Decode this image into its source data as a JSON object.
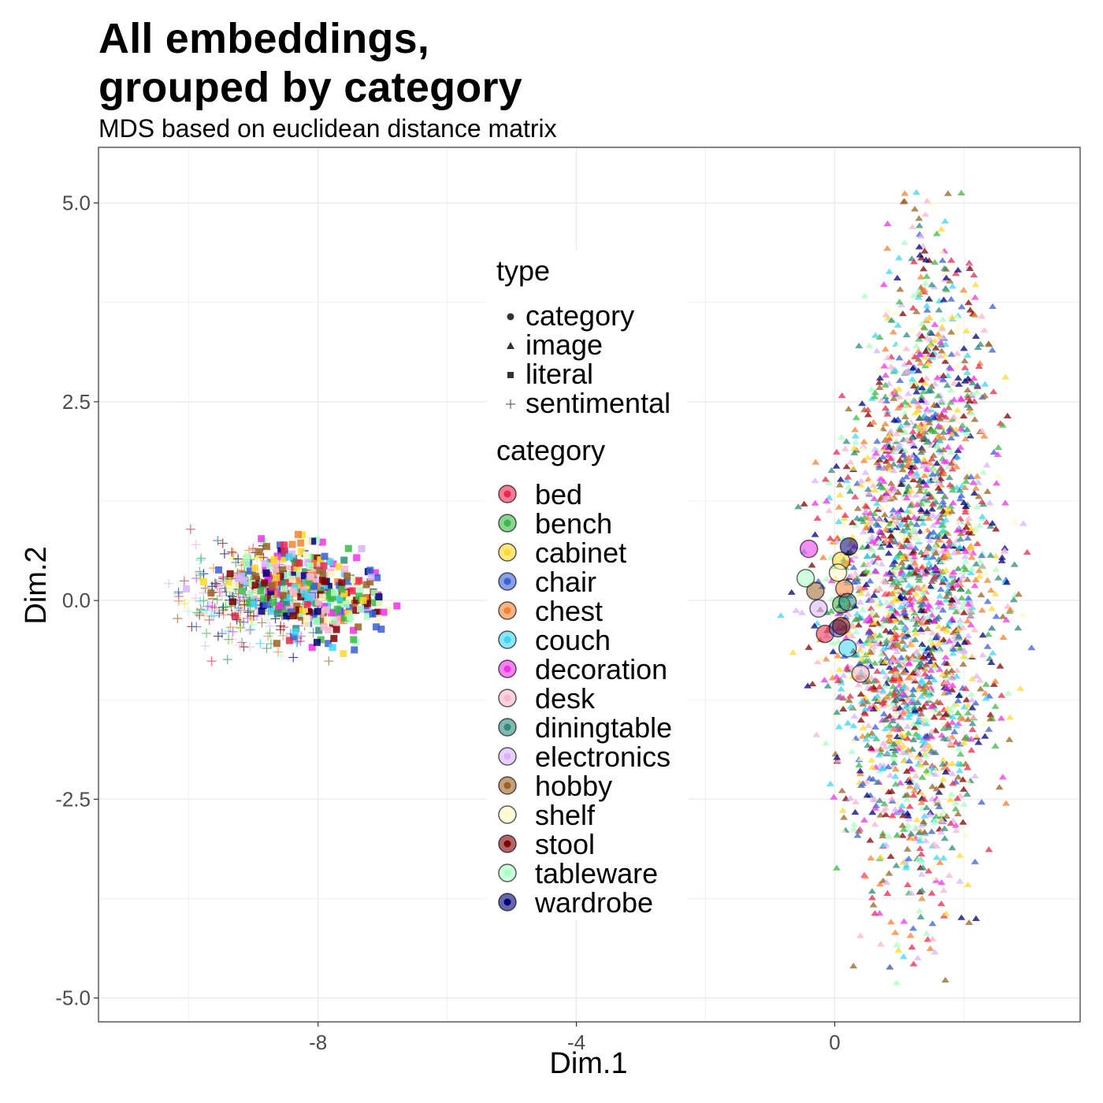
{
  "chart_data": {
    "type": "scatter",
    "title": "All embeddings,\ngrouped by category",
    "subtitle": "MDS based on euclidean distance matrix",
    "xlabel": "Dim.1",
    "ylabel": "Dim.2",
    "xlim": [
      -11.4,
      3.8
    ],
    "ylim": [
      -5.3,
      5.7
    ],
    "xticks": [
      -8,
      -4,
      0
    ],
    "xtick_labels": [
      "-8",
      "-4",
      "0"
    ],
    "yticks": [
      -5,
      -2.5,
      0,
      2.5,
      5
    ],
    "ytick_labels": [
      "-5.0",
      "-2.5",
      "0.0",
      "2.5",
      "5.0"
    ],
    "grid": true,
    "legend_position": "center",
    "legend": {
      "type_title": "type",
      "types": [
        {
          "label": "category",
          "shape": "circle"
        },
        {
          "label": "image",
          "shape": "triangle"
        },
        {
          "label": "literal",
          "shape": "square"
        },
        {
          "label": "sentimental",
          "shape": "plus"
        }
      ],
      "category_title": "category"
    },
    "categories": [
      {
        "name": "bed",
        "color": "#e8284f"
      },
      {
        "name": "bench",
        "color": "#3cb94a"
      },
      {
        "name": "cabinet",
        "color": "#ffd92f"
      },
      {
        "name": "chair",
        "color": "#3a5fd6"
      },
      {
        "name": "chest",
        "color": "#f58231"
      },
      {
        "name": "couch",
        "color": "#3dd6f5"
      },
      {
        "name": "decoration",
        "color": "#f032e6"
      },
      {
        "name": "desk",
        "color": "#fbb6cc"
      },
      {
        "name": "diningtable",
        "color": "#2e8b7a"
      },
      {
        "name": "electronics",
        "color": "#d9b3ff"
      },
      {
        "name": "hobby",
        "color": "#9a6324"
      },
      {
        "name": "shelf",
        "color": "#fffac8"
      },
      {
        "name": "stool",
        "color": "#800000"
      },
      {
        "name": "tableware",
        "color": "#aaffc3"
      },
      {
        "name": "wardrobe",
        "color": "#000075"
      }
    ],
    "category_points": [
      {
        "category": "bed",
        "x": -0.15,
        "y": -0.42
      },
      {
        "category": "bench",
        "x": 0.1,
        "y": -0.05
      },
      {
        "category": "cabinet",
        "x": 0.1,
        "y": 0.5
      },
      {
        "category": "chair",
        "x": 0.05,
        "y": -0.35
      },
      {
        "category": "chest",
        "x": 0.15,
        "y": 0.15
      },
      {
        "category": "couch",
        "x": 0.2,
        "y": -0.6
      },
      {
        "category": "decoration",
        "x": -0.4,
        "y": 0.65
      },
      {
        "category": "desk",
        "x": 0.4,
        "y": -0.92
      },
      {
        "category": "diningtable",
        "x": 0.2,
        "y": -0.02
      },
      {
        "category": "electronics",
        "x": -0.25,
        "y": -0.1
      },
      {
        "category": "hobby",
        "x": -0.3,
        "y": 0.12
      },
      {
        "category": "shelf",
        "x": 0.05,
        "y": 0.35
      },
      {
        "category": "stool",
        "x": 0.1,
        "y": -0.32
      },
      {
        "category": "tableware",
        "x": -0.45,
        "y": 0.28
      },
      {
        "category": "wardrobe",
        "x": 0.22,
        "y": 0.68
      }
    ],
    "clusters": {
      "image": {
        "center": [
          1.2,
          0.2
        ],
        "sd": [
          0.7,
          1.9
        ],
        "x_range": [
          -2.3,
          3.3
        ],
        "y_range": [
          -4.9,
          5.2
        ],
        "approx_points": 2600
      },
      "literal": {
        "center": [
          -8.1,
          0.05
        ],
        "x_range": [
          -10.2,
          -6.7
        ],
        "y_range": [
          -0.85,
          0.85
        ],
        "approx_points": 420
      },
      "sentimental": {
        "center": [
          -9.0,
          0.05
        ],
        "x_range": [
          -10.5,
          -7.8
        ],
        "y_range": [
          -0.95,
          0.95
        ],
        "approx_points": 340
      }
    }
  }
}
